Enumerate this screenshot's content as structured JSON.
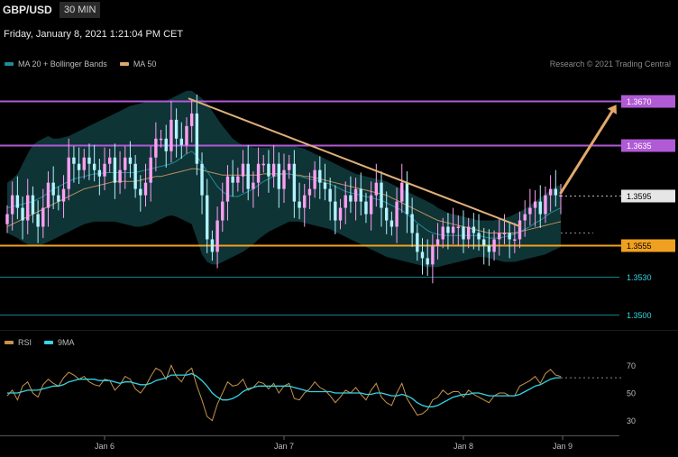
{
  "header": {
    "symbol": "GBP/USD",
    "timeframe": "30 MIN",
    "datetime": "Friday, January 8, 2021 1:21:04 PM CET"
  },
  "price_legend": [
    {
      "label": "MA 20 + Bollinger Bands",
      "color": "#1e8c99"
    },
    {
      "label": "MA 50",
      "color": "#e0a86b"
    }
  ],
  "rsi_legend": [
    {
      "label": "RSI",
      "color": "#c8934a"
    },
    {
      "label": "9MA",
      "color": "#33d6e6"
    }
  ],
  "credit": "Research © 2021 Trading Central",
  "colors": {
    "candle": "#ff9ff3",
    "candle_down": "#b2f2ff",
    "bands_fill": "#0f3a3c",
    "ma20": "#1e8c99",
    "ma50": "#b9905a",
    "resistance": "#b05ad6",
    "support": "#f0a020",
    "target_line": "#137f8a",
    "trendline": "#e0b07a",
    "arrow": "#e3a86a",
    "rsi": "#c8934a",
    "rsi_ma": "#33d6e6"
  },
  "chart_data": [
    {
      "type": "candlestick",
      "title": "GBP/USD",
      "y_unit": "price",
      "ylim": [
        1.3488,
        1.369
      ],
      "x_ticks": [
        "Jan 6",
        "Jan 7",
        "Jan 8",
        "Jan 9"
      ],
      "levels": [
        {
          "value": 1.367,
          "label": "1.3670",
          "kind": "resistance"
        },
        {
          "value": 1.3635,
          "label": "1.3635",
          "kind": "resistance"
        },
        {
          "value": 1.3595,
          "label": "1.3595",
          "kind": "current"
        },
        {
          "value": 1.3555,
          "label": "1.3555",
          "kind": "support"
        },
        {
          "value": 1.353,
          "label": "1.3530",
          "kind": "target"
        },
        {
          "value": 1.35,
          "label": "1.3500",
          "kind": "target"
        }
      ],
      "closes": [
        1.358,
        1.3595,
        1.3585,
        1.3575,
        1.3595,
        1.358,
        1.357,
        1.3585,
        1.3605,
        1.3595,
        1.359,
        1.36,
        1.3625,
        1.362,
        1.3615,
        1.3625,
        1.362,
        1.3615,
        1.361,
        1.362,
        1.3625,
        1.3605,
        1.3615,
        1.3625,
        1.362,
        1.36,
        1.3595,
        1.3605,
        1.3625,
        1.364,
        1.364,
        1.363,
        1.3655,
        1.364,
        1.3635,
        1.365,
        1.366,
        1.362,
        1.3595,
        1.356,
        1.355,
        1.3575,
        1.359,
        1.361,
        1.3605,
        1.361,
        1.362,
        1.36,
        1.3605,
        1.362,
        1.362,
        1.361,
        1.362,
        1.36,
        1.3615,
        1.362,
        1.359,
        1.3585,
        1.3595,
        1.36,
        1.3615,
        1.3605,
        1.36,
        1.359,
        1.3575,
        1.3585,
        1.3595,
        1.359,
        1.36,
        1.359,
        1.358,
        1.3595,
        1.3605,
        1.3585,
        1.3575,
        1.357,
        1.359,
        1.3605,
        1.358,
        1.3565,
        1.355,
        1.3545,
        1.354,
        1.3555,
        1.356,
        1.357,
        1.3565,
        1.357,
        1.357,
        1.356,
        1.357,
        1.3565,
        1.356,
        1.3555,
        1.355,
        1.356,
        1.3565,
        1.3565,
        1.356,
        1.356,
        1.3575,
        1.358,
        1.3585,
        1.359,
        1.358,
        1.3595,
        1.36,
        1.3595,
        1.3595
      ],
      "ma20": [
        1.3585,
        1.3586,
        1.3587,
        1.3588,
        1.3589,
        1.359,
        1.3592,
        1.3594,
        1.3597,
        1.36,
        1.3602,
        1.3604,
        1.3606,
        1.3608,
        1.3609,
        1.361,
        1.3611,
        1.3612,
        1.3612,
        1.3613,
        1.3613,
        1.3613,
        1.3613,
        1.3613,
        1.3613,
        1.3613,
        1.3614,
        1.3615,
        1.3616,
        1.3617,
        1.3618,
        1.3619,
        1.362,
        1.3622,
        1.3625,
        1.3628,
        1.363,
        1.3626,
        1.362,
        1.3614,
        1.3608,
        1.3602,
        1.3598,
        1.3595,
        1.3594,
        1.3594,
        1.3596,
        1.3598,
        1.36,
        1.3603,
        1.3606,
        1.3608,
        1.361,
        1.3611,
        1.3612,
        1.3612,
        1.3611,
        1.361,
        1.3609,
        1.3608,
        1.3607,
        1.3606,
        1.3605,
        1.3604,
        1.3602,
        1.36,
        1.3598,
        1.3597,
        1.3596,
        1.3595,
        1.3594,
        1.3593,
        1.3592,
        1.3591,
        1.3589,
        1.3587,
        1.3585,
        1.3583,
        1.358,
        1.3577,
        1.3573,
        1.357,
        1.3567,
        1.3565,
        1.3564,
        1.3563,
        1.3563,
        1.3563,
        1.3563,
        1.3563,
        1.3563,
        1.3563,
        1.3563,
        1.3562,
        1.3561,
        1.3561,
        1.3561,
        1.3562,
        1.3563,
        1.3564,
        1.3566,
        1.3568,
        1.357,
        1.3573,
        1.3575,
        1.3578,
        1.3581,
        1.3583,
        1.3585
      ],
      "bb_upper": [
        1.3605,
        1.3608,
        1.3612,
        1.362,
        1.3628,
        1.3635,
        1.3638,
        1.364,
        1.3642,
        1.364,
        1.364,
        1.3641,
        1.3642,
        1.3644,
        1.3646,
        1.3648,
        1.365,
        1.3652,
        1.3654,
        1.3656,
        1.3658,
        1.366,
        1.3662,
        1.3664,
        1.3666,
        1.3667,
        1.3668,
        1.3669,
        1.367,
        1.367,
        1.367,
        1.367,
        1.3672,
        1.3674,
        1.3676,
        1.3678,
        1.3678,
        1.3675,
        1.3672,
        1.3668,
        1.3662,
        1.3656,
        1.365,
        1.3645,
        1.364,
        1.3637,
        1.3635,
        1.3634,
        1.3633,
        1.3633,
        1.3633,
        1.3633,
        1.3634,
        1.3635,
        1.3635,
        1.3635,
        1.3634,
        1.3633,
        1.3632,
        1.363,
        1.3628,
        1.3626,
        1.3624,
        1.3622,
        1.362,
        1.3618,
        1.3616,
        1.3614,
        1.3612,
        1.3611,
        1.361,
        1.3609,
        1.3608,
        1.3607,
        1.3606,
        1.3604,
        1.3602,
        1.36,
        1.3598,
        1.3596,
        1.3594,
        1.3592,
        1.359,
        1.3588,
        1.3585,
        1.3583,
        1.3581,
        1.358,
        1.3579,
        1.3578,
        1.3577,
        1.3576,
        1.3575,
        1.3575,
        1.3575,
        1.3575,
        1.3576,
        1.3577,
        1.3578,
        1.358,
        1.3582,
        1.3584,
        1.3587,
        1.359,
        1.3593,
        1.3596,
        1.3599,
        1.3602,
        1.3603
      ],
      "bb_lower": [
        1.3565,
        1.3563,
        1.3561,
        1.3558,
        1.3556,
        1.3555,
        1.3555,
        1.3556,
        1.3558,
        1.356,
        1.3562,
        1.3564,
        1.3566,
        1.3568,
        1.357,
        1.3572,
        1.3573,
        1.3574,
        1.3574,
        1.3574,
        1.3574,
        1.3574,
        1.3573,
        1.3572,
        1.3571,
        1.357,
        1.357,
        1.3571,
        1.3572,
        1.3574,
        1.3576,
        1.3578,
        1.3579,
        1.3578,
        1.3576,
        1.3574,
        1.3572,
        1.356,
        1.3548,
        1.3542,
        1.354,
        1.354,
        1.3542,
        1.3544,
        1.3546,
        1.3548,
        1.355,
        1.3553,
        1.3556,
        1.356,
        1.3563,
        1.3566,
        1.3568,
        1.357,
        1.3572,
        1.3574,
        1.3574,
        1.3574,
        1.3573,
        1.3572,
        1.3571,
        1.357,
        1.3569,
        1.3568,
        1.3566,
        1.3564,
        1.3562,
        1.356,
        1.3558,
        1.3556,
        1.3554,
        1.3552,
        1.355,
        1.3548,
        1.3546,
        1.3545,
        1.3544,
        1.3543,
        1.3542,
        1.3541,
        1.354,
        1.3539,
        1.3538,
        1.3538,
        1.3538,
        1.3539,
        1.354,
        1.3541,
        1.3542,
        1.3543,
        1.3544,
        1.3545,
        1.3546,
        1.3546,
        1.3545,
        1.3544,
        1.3543,
        1.3542,
        1.3542,
        1.3542,
        1.3543,
        1.3544,
        1.3545,
        1.3546,
        1.3547,
        1.3548,
        1.355,
        1.3552,
        1.3554
      ],
      "ma50": [
        1.357,
        1.3572,
        1.3574,
        1.3576,
        1.3578,
        1.358,
        1.3582,
        1.3584,
        1.3586,
        1.3588,
        1.359,
        1.3592,
        1.3594,
        1.3596,
        1.3598,
        1.36,
        1.3601,
        1.3602,
        1.3603,
        1.3604,
        1.3605,
        1.3606,
        1.3606,
        1.3606,
        1.3606,
        1.3606,
        1.3607,
        1.3608,
        1.3609,
        1.361,
        1.361,
        1.3611,
        1.3612,
        1.3613,
        1.3614,
        1.3615,
        1.3616,
        1.3616,
        1.3615,
        1.3614,
        1.3613,
        1.3612,
        1.3611,
        1.3611,
        1.3611,
        1.3611,
        1.3611,
        1.3611,
        1.3611,
        1.3611,
        1.3612,
        1.3612,
        1.3612,
        1.3612,
        1.3612,
        1.3612,
        1.3611,
        1.3611,
        1.361,
        1.361,
        1.3609,
        1.3608,
        1.3607,
        1.3606,
        1.3605,
        1.3604,
        1.3603,
        1.3602,
        1.3601,
        1.36,
        1.3599,
        1.3598,
        1.3597,
        1.3596,
        1.3595,
        1.3593,
        1.3591,
        1.3589,
        1.3587,
        1.3585,
        1.3583,
        1.3581,
        1.3579,
        1.3577,
        1.3575,
        1.3574,
        1.3573,
        1.3572,
        1.3571,
        1.357,
        1.3569,
        1.3568,
        1.3567,
        1.3566,
        1.3565,
        1.3565,
        1.3565,
        1.3565,
        1.3565,
        1.3565,
        1.3566,
        1.3567,
        1.3568,
        1.3569,
        1.357,
        1.3571,
        1.3572,
        1.3573,
        1.3574
      ],
      "trendline": [
        [
          0.3,
          1.3672
        ],
        [
          0.84,
          1.357
        ]
      ],
      "forecast_arrow": [
        [
          0.905,
          1.3597
        ],
        [
          0.995,
          1.3667
        ]
      ]
    },
    {
      "type": "line",
      "title": "RSI",
      "ylim": [
        20,
        80
      ],
      "y_ticks": [
        30,
        50,
        70
      ],
      "reference_value": 61,
      "series": [
        {
          "name": "RSI",
          "values": [
            48,
            52,
            45,
            55,
            58,
            50,
            47,
            56,
            60,
            57,
            55,
            61,
            65,
            63,
            60,
            62,
            58,
            56,
            55,
            60,
            59,
            52,
            56,
            62,
            60,
            53,
            50,
            55,
            62,
            68,
            66,
            60,
            70,
            62,
            58,
            65,
            68,
            55,
            45,
            33,
            30,
            42,
            50,
            58,
            55,
            56,
            60,
            52,
            54,
            58,
            57,
            53,
            57,
            50,
            55,
            57,
            46,
            45,
            50,
            53,
            58,
            54,
            52,
            48,
            43,
            47,
            52,
            50,
            54,
            49,
            45,
            52,
            57,
            47,
            43,
            41,
            50,
            57,
            46,
            40,
            34,
            35,
            38,
            45,
            47,
            52,
            49,
            51,
            51,
            47,
            52,
            49,
            47,
            45,
            43,
            48,
            50,
            50,
            48,
            48,
            55,
            57,
            59,
            62,
            57,
            64,
            67,
            63,
            62
          ]
        },
        {
          "name": "9MA",
          "values": [
            50,
            50,
            50,
            51,
            52,
            52,
            52,
            53,
            54,
            55,
            55,
            56,
            58,
            59,
            60,
            60,
            60,
            60,
            59,
            59,
            59,
            58,
            57,
            58,
            58,
            57,
            56,
            56,
            57,
            59,
            60,
            61,
            63,
            63,
            63,
            63,
            64,
            62,
            59,
            55,
            50,
            47,
            45,
            45,
            46,
            48,
            51,
            53,
            54,
            55,
            55,
            55,
            55,
            55,
            55,
            55,
            54,
            53,
            52,
            51,
            51,
            51,
            51,
            51,
            50,
            50,
            50,
            50,
            50,
            50,
            49,
            49,
            50,
            50,
            49,
            48,
            48,
            49,
            48,
            46,
            43,
            41,
            40,
            40,
            41,
            43,
            45,
            47,
            48,
            49,
            49,
            50,
            50,
            49,
            48,
            48,
            48,
            48,
            48,
            48,
            49,
            51,
            53,
            55,
            56,
            58,
            60,
            61,
            61
          ]
        }
      ]
    }
  ]
}
